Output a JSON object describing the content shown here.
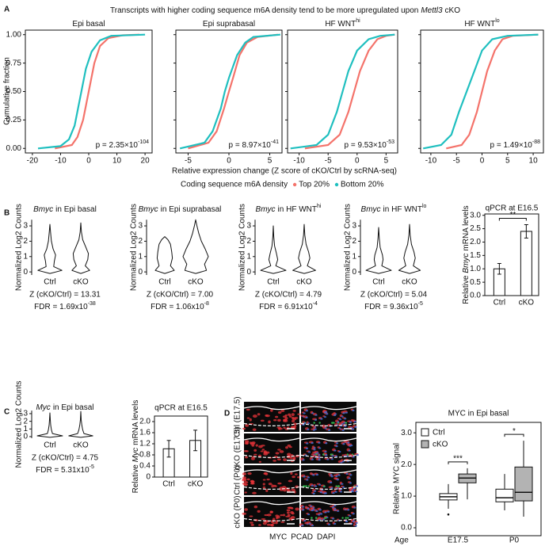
{
  "chart_data": [
    {
      "type": "ecdf",
      "panel": "A",
      "title": "Transcripts with higher coding sequence m6A density tend to be more upregulated upon",
      "title_gene": "Mettl3",
      "title_end": "cKO",
      "ylabel": "Cumulative fraction",
      "xlabel": "Relative expression change (Z score of cKO/Ctrl by scRNA-seq)",
      "legend_title": "Coding sequence m6A density",
      "series": [
        {
          "name": "Top 20%",
          "color": "#f4736b"
        },
        {
          "name": "Bottom 20%",
          "color": "#1fbfbf"
        }
      ],
      "ylim": [
        -0.04,
        1.04
      ],
      "yticks": [
        {
          "value": 0,
          "label": "0.00"
        },
        0.25,
        {
          "value": 0.5,
          "label": "0.50"
        },
        0.75,
        {
          "value": 1,
          "label": "1.00"
        }
      ],
      "subplots": [
        {
          "title": "Epi basal",
          "xlim": [
            -22.5,
            22.5
          ],
          "xticks": [
            -20,
            -10,
            0,
            10,
            20
          ],
          "p": "p = 2.35×10",
          "p_exp": "-104",
          "curves": [
            {
              "x": [
                -12,
                -6,
                -4,
                -2,
                0,
                2,
                4,
                7,
                12,
                18
              ],
              "y": [
                0,
                0.03,
                0.1,
                0.25,
                0.5,
                0.75,
                0.9,
                0.97,
                0.995,
                1
              ]
            },
            {
              "x": [
                -18,
                -10,
                -7,
                -5,
                -3,
                -1,
                1,
                4,
                8,
                20
              ],
              "y": [
                0,
                0.02,
                0.08,
                0.2,
                0.45,
                0.7,
                0.85,
                0.95,
                0.99,
                1
              ]
            }
          ]
        },
        {
          "title": "Epi suprabasal",
          "xlim": [
            -6.5,
            6.5
          ],
          "xticks": [
            -5,
            0,
            5
          ],
          "p": "p = 8.97×10",
          "p_exp": "-41",
          "curves": [
            {
              "x": [
                -5,
                -2.5,
                -1.5,
                -0.6,
                0,
                0.5,
                1.3,
                2.2,
                3.5,
                6
              ],
              "y": [
                0,
                0.05,
                0.15,
                0.35,
                0.5,
                0.62,
                0.82,
                0.93,
                0.98,
                1
              ]
            },
            {
              "x": [
                -6,
                -3,
                -2,
                -1,
                -0.5,
                0,
                1,
                2,
                3,
                6.3
              ],
              "y": [
                0,
                0.05,
                0.15,
                0.35,
                0.5,
                0.62,
                0.82,
                0.93,
                0.98,
                1
              ]
            }
          ]
        },
        {
          "title": "HF WNT",
          "title_sup": "hi",
          "xlim": [
            -12,
            7
          ],
          "xticks": [
            -10,
            -5,
            0,
            5
          ],
          "p": "p = 9.53×10",
          "p_exp": "-53",
          "curves": [
            {
              "x": [
                -9,
                -5,
                -3,
                -1.5,
                -0.5,
                0.5,
                2,
                3.5,
                5,
                6.5
              ],
              "y": [
                0,
                0.03,
                0.12,
                0.32,
                0.5,
                0.68,
                0.86,
                0.96,
                0.99,
                1
              ]
            },
            {
              "x": [
                -11.5,
                -7,
                -5,
                -3.5,
                -2.5,
                -1.5,
                0,
                2,
                4,
                6.5
              ],
              "y": [
                0,
                0.03,
                0.12,
                0.32,
                0.5,
                0.68,
                0.86,
                0.96,
                0.99,
                1
              ]
            }
          ]
        },
        {
          "title": "HF WNT",
          "title_sup": "lo",
          "xlim": [
            -12,
            12
          ],
          "xticks": [
            -10,
            -5,
            0,
            5,
            10
          ],
          "p": "p = 1.49×10",
          "p_exp": "-88",
          "curves": [
            {
              "x": [
                -7,
                -4,
                -2.5,
                -1,
                0,
                1,
                2.5,
                4,
                6,
                11
              ],
              "y": [
                0,
                0.03,
                0.12,
                0.32,
                0.5,
                0.68,
                0.86,
                0.96,
                0.99,
                1
              ]
            },
            {
              "x": [
                -11.5,
                -8,
                -6,
                -4.5,
                -3,
                -1.5,
                0,
                2,
                5,
                11
              ],
              "y": [
                0,
                0.03,
                0.12,
                0.32,
                0.5,
                0.68,
                0.86,
                0.96,
                0.99,
                1
              ]
            }
          ]
        }
      ]
    },
    {
      "type": "violin",
      "panel": "B",
      "ylabel": "Normalized Log2 Counts",
      "ylim": [
        -0.2,
        3.4
      ],
      "yticks": [
        0,
        1,
        2,
        3
      ],
      "categories": [
        "Ctrl",
        "cKO"
      ],
      "subplots": [
        {
          "title_gene": "Bmyc",
          "title": "in Epi basal",
          "z": "Z (cKO/Ctrl) = 13.31",
          "fdr": "FDR = 1.69x10",
          "fdr_exp": "-38",
          "violins": [
            {
              "y": [
                -0.1,
                0.1,
                0.35,
                0.7,
                1.1,
                1.5,
                2,
                2.6,
                3.1
              ],
              "width": [
                0,
                0.95,
                0.3,
                0.35,
                0.45,
                0.25,
                0.12,
                0.05,
                0
              ]
            },
            {
              "y": [
                -0.1,
                0.1,
                0.4,
                0.8,
                1.2,
                1.6,
                2.1,
                2.6,
                3.2
              ],
              "width": [
                0,
                0.7,
                0.35,
                0.55,
                0.6,
                0.4,
                0.15,
                0.05,
                0
              ]
            }
          ]
        },
        {
          "title_gene": "Bmyc",
          "title": "in Epi suprabasal",
          "z": "Z (cKO/Ctrl) = 7.00",
          "fdr": "FDR = 1.06x10",
          "fdr_exp": "-8",
          "violins": [
            {
              "y": [
                -0.1,
                0.1,
                0.4,
                0.9,
                1.3,
                1.8,
                2.1,
                2.3
              ],
              "width": [
                0,
                0.75,
                0.45,
                0.6,
                0.55,
                0.45,
                0.25,
                0
              ]
            },
            {
              "y": [
                -0.1,
                0.1,
                0.5,
                1,
                1.5,
                2,
                2.5,
                3,
                3.4
              ],
              "width": [
                0,
                0.85,
                0.7,
                1,
                0.75,
                0.45,
                0.25,
                0.1,
                0
              ]
            }
          ]
        },
        {
          "title_gene": "Bmyc",
          "title": "in HF WNT",
          "title_sup": "hi",
          "z": "Z (cKO/Ctrl) = 4.79",
          "fdr": "FDR = 6.91x10",
          "fdr_exp": "-4",
          "violins": [
            {
              "y": [
                -0.1,
                0.1,
                0.4,
                0.8,
                1.2,
                1.7,
                2.3,
                3
              ],
              "width": [
                0,
                1,
                0.2,
                0.35,
                0.25,
                0.1,
                0.04,
                0
              ]
            },
            {
              "y": [
                -0.1,
                0.1,
                0.4,
                0.9,
                1.3,
                1.8,
                2.4,
                3.1
              ],
              "width": [
                0,
                0.9,
                0.25,
                0.45,
                0.35,
                0.15,
                0.05,
                0
              ]
            }
          ]
        },
        {
          "title_gene": "Bmyc",
          "title": "in HF WNT",
          "title_sup": "lo",
          "z": "Z (cKO/Ctrl) = 5.04",
          "fdr": "FDR = 9.36x10",
          "fdr_exp": "-5",
          "violins": [
            {
              "y": [
                -0.1,
                0.1,
                0.4,
                0.8,
                1.1,
                1.6,
                2.2,
                2.9
              ],
              "width": [
                0,
                1,
                0.25,
                0.35,
                0.3,
                0.12,
                0.05,
                0
              ]
            },
            {
              "y": [
                -0.1,
                0.1,
                0.4,
                0.9,
                1.3,
                1.8,
                2.4,
                3.1
              ],
              "width": [
                0,
                0.85,
                0.3,
                0.45,
                0.35,
                0.15,
                0.05,
                0
              ]
            }
          ]
        }
      ]
    },
    {
      "type": "bar",
      "title": "qPCR at E16.5",
      "ylabel": "Relative",
      "ylabel_gene": "Bmyc",
      "ylabel_end": "mRNA levels",
      "categories": [
        "Ctrl",
        "cKO"
      ],
      "values": [
        1.0,
        2.4
      ],
      "errors": [
        0.2,
        0.25
      ],
      "color": "#ffffff",
      "significance": "**",
      "ylim": [
        0,
        3.05
      ],
      "yticks": [
        {
          "value": 0,
          "label": "0.0"
        },
        0.5,
        {
          "value": 1,
          "label": "1.0"
        },
        1.5,
        {
          "value": 2,
          "label": "2.0"
        },
        2.5,
        {
          "value": 3,
          "label": "3.0"
        }
      ]
    },
    {
      "type": "violin",
      "panel": "C",
      "ylabel": "Normalized Log2 Counts",
      "ylim": [
        -0.2,
        3.4
      ],
      "yticks": [
        0,
        1,
        2,
        3
      ],
      "categories": [
        "Ctrl",
        "cKO"
      ],
      "subplots": [
        {
          "title_gene": "Myc",
          "title": "in Epi basal",
          "z": "Z (cKO/Ctrl) = 4.75",
          "fdr": "FDR = 5.31x10",
          "fdr_exp": "-5",
          "violins": [
            {
              "y": [
                -0.1,
                0.1,
                0.4,
                0.9,
                1.5,
                2.2,
                3.1
              ],
              "width": [
                0,
                1,
                0.2,
                0.12,
                0.06,
                0.03,
                0
              ]
            },
            {
              "y": [
                -0.1,
                0.1,
                0.4,
                0.9,
                1.5,
                2.2,
                3.3
              ],
              "width": [
                0,
                0.95,
                0.25,
                0.15,
                0.08,
                0.03,
                0
              ]
            }
          ]
        }
      ]
    },
    {
      "type": "bar",
      "title": "qPCR at E16.5",
      "ylabel": "Relative",
      "ylabel_gene": "Myc",
      "ylabel_end": "mRNA levels",
      "categories": [
        "Ctrl",
        "cKO"
      ],
      "values": [
        1.02,
        1.32
      ],
      "errors": [
        0.3,
        0.37
      ],
      "color": "#ffffff",
      "ylim": [
        0,
        2.2
      ],
      "yticks": [
        0,
        0.4,
        0.8,
        1.2,
        1.6,
        {
          "value": 2,
          "label": "2.0"
        }
      ]
    },
    {
      "type": "box",
      "title": "MYC in Epi basal",
      "ylabel": "Relative MYC signal",
      "xlabel": "Age",
      "categories": [
        "E17.5",
        "P0"
      ],
      "ylim": [
        -0.25,
        3.33
      ],
      "yticks": [
        {
          "value": 0,
          "label": "0.0"
        },
        {
          "value": 1,
          "label": "1.0"
        },
        {
          "value": 2,
          "label": "2.0"
        },
        {
          "value": 3,
          "label": "3.0"
        }
      ],
      "significance": [
        "***",
        "*"
      ],
      "series": [
        {
          "name": "Ctrl",
          "color": "#ffffff",
          "boxes": [
            {
              "min": 0.6,
              "q1": 0.88,
              "median": 0.98,
              "q3": 1.08,
              "max": 1.38,
              "outliers": [
                0.42
              ]
            },
            {
              "min": 0.55,
              "q1": 0.82,
              "median": 0.95,
              "q3": 1.22,
              "max": 1.7
            }
          ]
        },
        {
          "name": "cKO",
          "color": "#b3b3b3",
          "boxes": [
            {
              "min": 0.9,
              "q1": 1.42,
              "median": 1.57,
              "q3": 1.7,
              "max": 1.88
            },
            {
              "min": 0.35,
              "q1": 0.85,
              "median": 1.12,
              "q3": 1.92,
              "max": 2.75
            }
          ]
        }
      ]
    }
  ],
  "micrographs": {
    "panel": "D",
    "rows": [
      "Ctrl (E17.5)",
      "cKO (E17.5)",
      "Ctrl (P0)",
      "cKO (P0)"
    ],
    "stains": [
      {
        "name": "MYC",
        "color": "#e8343a"
      },
      {
        "name": "PCAD",
        "color": "#2db34a"
      },
      {
        "name": "DAPI",
        "color": "#3a6fd8"
      }
    ]
  }
}
